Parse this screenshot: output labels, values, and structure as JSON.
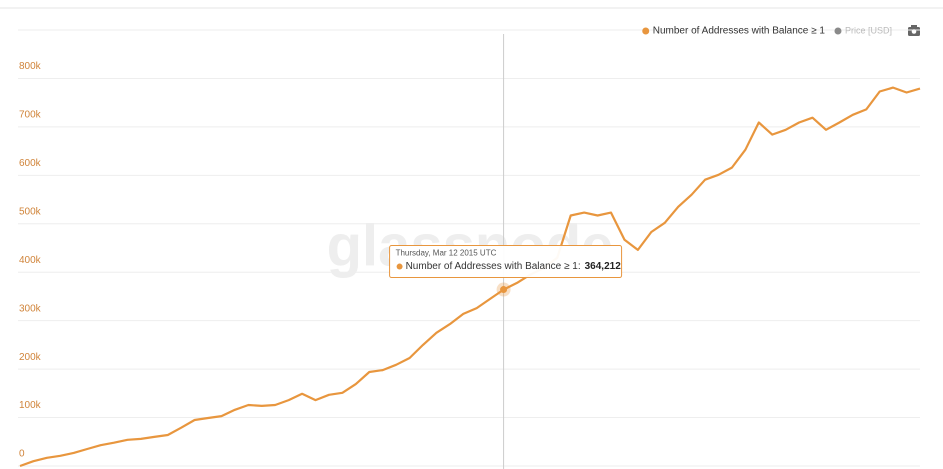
{
  "chart_data": {
    "type": "line",
    "watermark": "glassnode",
    "series": [
      {
        "name": "Number of Addresses with Balance ≥ 1",
        "color": "#e8963e",
        "values": [
          0,
          10000,
          17000,
          21000,
          27000,
          35000,
          43000,
          48000,
          54000,
          56000,
          60000,
          64000,
          79000,
          95000,
          99000,
          103000,
          116000,
          126000,
          124000,
          126000,
          136000,
          149000,
          136000,
          147000,
          151000,
          169000,
          194000,
          198000,
          209000,
          223000,
          250000,
          275000,
          293000,
          314000,
          326000,
          345000,
          364212,
          378000,
          395000,
          409000,
          430000,
          517000,
          523000,
          517000,
          523000,
          467000,
          446000,
          483000,
          502000,
          535000,
          560000,
          591000,
          601000,
          616000,
          653000,
          709000,
          684000,
          694000,
          709000,
          719000,
          694000,
          709000,
          725000,
          736000,
          773000,
          781000,
          771000,
          779000
        ]
      }
    ],
    "inactive_legend": {
      "name": "Price [USD]",
      "color": "#8a8a8a"
    },
    "tooltip": {
      "date": "Thursday, Mar 12 2015 UTC",
      "label": "Number of Addresses with Balance ≥ 1:",
      "value": 364212,
      "value_label": "364,212"
    },
    "ylim": [
      0,
      900000
    ],
    "yticks": [
      0,
      {
        "value": 100000,
        "label": "100k"
      },
      {
        "value": 200000,
        "label": "200k"
      },
      {
        "value": 300000,
        "label": "300k"
      },
      {
        "value": 400000,
        "label": "400k"
      },
      {
        "value": 500000,
        "label": "500k"
      },
      {
        "value": 600000,
        "label": "600k"
      },
      {
        "value": 700000,
        "label": "700k"
      },
      {
        "value": 800000,
        "label": "800k"
      }
    ],
    "grid": true
  }
}
